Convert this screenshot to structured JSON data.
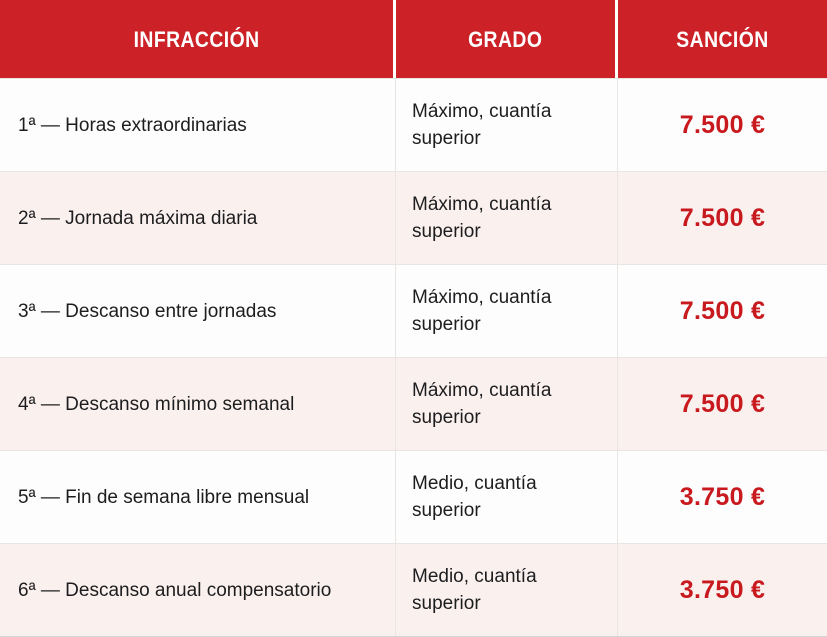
{
  "chart_data": {
    "type": "table",
    "columns": [
      "INFRACCIÓN",
      "GRADO",
      "SANCIÓN"
    ],
    "rows": [
      [
        "1ª — Horas extraordinarias",
        "Máximo, cuantía superior",
        "7.500 €"
      ],
      [
        "2ª — Jornada máxima diaria",
        "Máximo, cuantía superior",
        "7.500 €"
      ],
      [
        "3ª — Descanso entre jornadas",
        "Máximo, cuantía superior",
        "7.500 €"
      ],
      [
        "4ª — Descanso mínimo semanal",
        "Máximo, cuantía superior",
        "7.500 €"
      ],
      [
        "5ª — Fin de semana libre mensual",
        "Medio, cuantía superior",
        "3.750 €"
      ],
      [
        "6ª — Descanso anual compensatorio",
        "Medio, cuantía superior",
        "3.750 €"
      ]
    ],
    "sanction_values_eur": [
      7500,
      7500,
      7500,
      7500,
      3750,
      3750
    ]
  },
  "table": {
    "headers": [
      {
        "label": "INFRACCIÓN"
      },
      {
        "label": "GRADO"
      },
      {
        "label": "SANCIÓN"
      }
    ],
    "rows": [
      {
        "infraccion": "1ª — Horas extraordinarias",
        "grado": "Máximo, cuantía superior",
        "sancion": "7.500 €"
      },
      {
        "infraccion": "2ª — Jornada máxima diaria",
        "grado": "Máximo, cuantía superior",
        "sancion": "7.500 €"
      },
      {
        "infraccion": "3ª — Descanso entre jornadas",
        "grado": "Máximo, cuantía superior",
        "sancion": "7.500 €"
      },
      {
        "infraccion": "4ª — Descanso mínimo semanal",
        "grado": "Máximo, cuantía superior",
        "sancion": "7.500 €"
      },
      {
        "infraccion": "5ª — Fin de semana libre mensual",
        "grado": "Medio, cuantía superior",
        "sancion": "3.750 €"
      },
      {
        "infraccion": "6ª — Descanso anual compensatorio",
        "grado": "Medio, cuantía superior",
        "sancion": "3.750 €"
      }
    ]
  },
  "colors": {
    "header_bg": "#cb2127",
    "header_text": "#ffffff",
    "sancion_text": "#c8191e",
    "body_text": "#1d1d1f",
    "row_bg": "#fefdfd",
    "row_alt_bg": "#faf1ef",
    "grid_line": "#e9e5e3"
  }
}
